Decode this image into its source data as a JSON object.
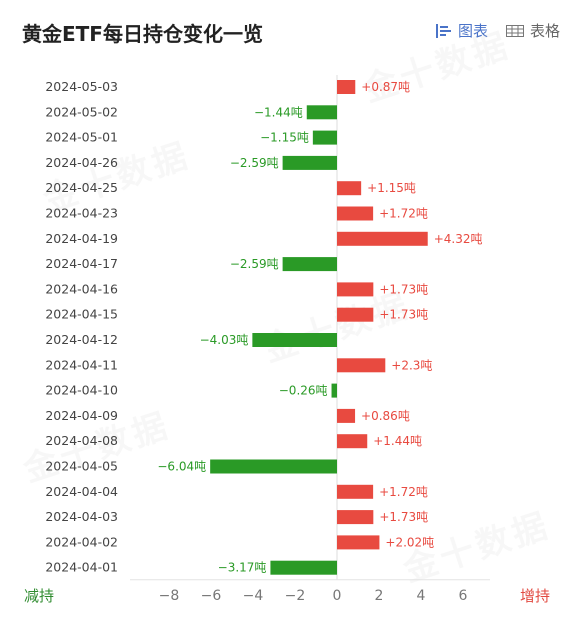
{
  "header": {
    "title": "黄金ETF每日持仓变化一览",
    "tabs": [
      {
        "label": "图表",
        "icon": "chart-icon",
        "active": true
      },
      {
        "label": "表格",
        "icon": "table-icon",
        "active": false
      }
    ]
  },
  "legend": {
    "left": "减持",
    "right": "增持"
  },
  "colors": {
    "positive": "#e84a40",
    "negative": "#2a9a26"
  },
  "chart_data": {
    "type": "bar",
    "orientation": "horizontal",
    "categories": [
      "2024-05-03",
      "2024-05-02",
      "2024-05-01",
      "2024-04-26",
      "2024-04-25",
      "2024-04-23",
      "2024-04-19",
      "2024-04-17",
      "2024-04-16",
      "2024-04-15",
      "2024-04-12",
      "2024-04-11",
      "2024-04-10",
      "2024-04-09",
      "2024-04-08",
      "2024-04-05",
      "2024-04-04",
      "2024-04-03",
      "2024-04-02",
      "2024-04-01"
    ],
    "values": [
      0.87,
      -1.44,
      -1.15,
      -2.59,
      1.15,
      1.72,
      4.32,
      -2.59,
      1.73,
      1.73,
      -4.03,
      2.3,
      -0.26,
      0.86,
      1.44,
      -6.04,
      1.72,
      1.73,
      2.02,
      -3.17
    ],
    "labels": [
      "+0.87吨",
      "−1.44吨",
      "−1.15吨",
      "−2.59吨",
      "+1.15吨",
      "+1.72吨",
      "+4.32吨",
      "−2.59吨",
      "+1.73吨",
      "+1.73吨",
      "−4.03吨",
      "+2.3吨",
      "−0.26吨",
      "+0.86吨",
      "+1.44吨",
      "−6.04吨",
      "+1.72吨",
      "+1.73吨",
      "+2.02吨",
      "−3.17吨"
    ],
    "xlim": [
      -8,
      6
    ],
    "xticks": [
      -8,
      -6,
      -4,
      -2,
      0,
      2,
      4,
      6
    ],
    "xtick_labels": [
      "−8",
      "−6",
      "−4",
      "−2",
      "0",
      "2",
      "4",
      "6"
    ],
    "grid": false
  }
}
